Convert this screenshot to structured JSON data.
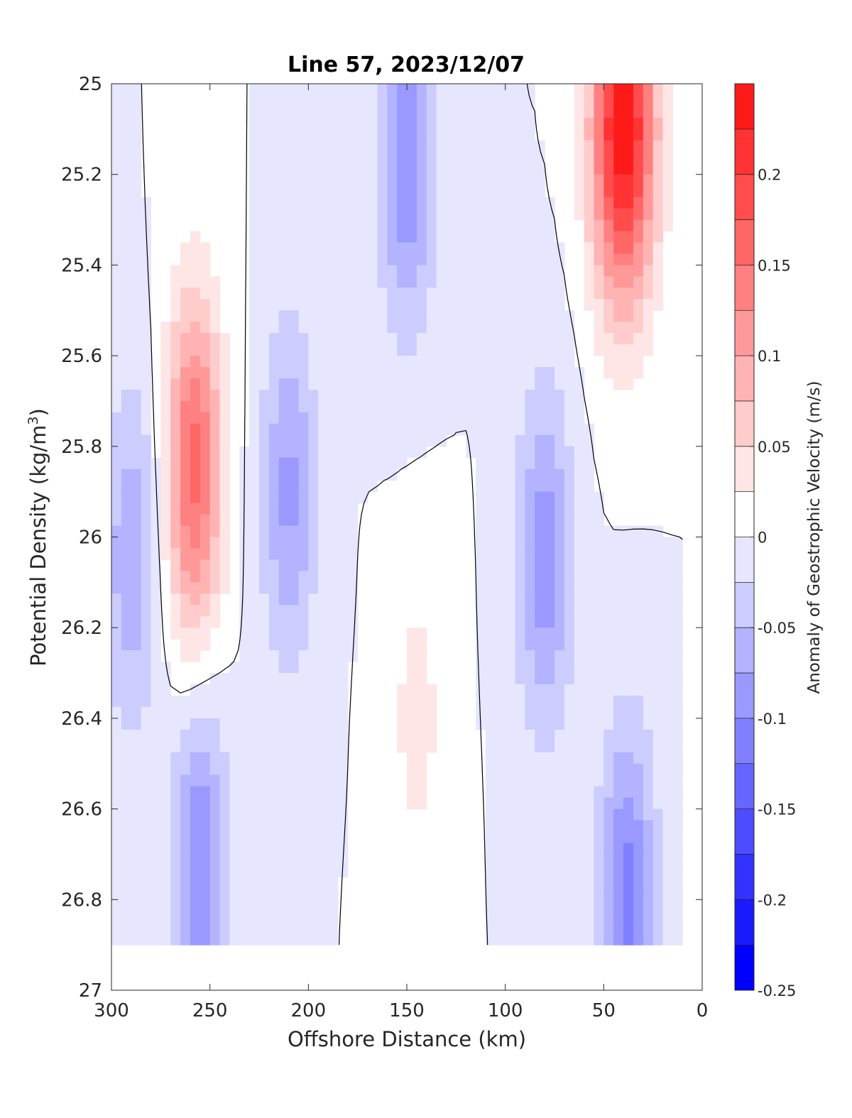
{
  "chart_data": {
    "type": "heatmap",
    "title": "Line 57, 2023/12/07",
    "xlabel": "Offshore Distance (km)",
    "ylabel": "Potential Density (kg/m",
    "ylabel_sup": "3",
    "ylabel_close": ")",
    "xlim": [
      300,
      0
    ],
    "ylim": [
      25,
      27
    ],
    "x_reversed": true,
    "y_reversed": true,
    "xticks": [
      300,
      250,
      200,
      150,
      100,
      50,
      0
    ],
    "yticks": [
      25,
      25.2,
      25.4,
      25.6,
      25.8,
      26,
      26.2,
      26.4,
      26.6,
      26.8,
      27
    ],
    "xtick_labels": [
      "300",
      "250",
      "200",
      "150",
      "100",
      "50",
      "0"
    ],
    "ytick_labels": [
      "25",
      "25.2",
      "25.4",
      "25.6",
      "25.8",
      "26",
      "26.2",
      "26.4",
      "26.6",
      "26.8",
      "27"
    ],
    "colorbar": {
      "label": "Anomaly of Geostrophic Velocity (m/s)",
      "range": [
        -0.25,
        0.25
      ],
      "levels": [
        -0.25,
        -0.225,
        -0.2,
        -0.175,
        -0.15,
        -0.125,
        -0.1,
        -0.075,
        -0.05,
        -0.025,
        0,
        0.025,
        0.05,
        0.075,
        0.1,
        0.125,
        0.15,
        0.175,
        0.2,
        0.225,
        0.25
      ],
      "colors": [
        "#0000ff",
        "#1a1aff",
        "#3333ff",
        "#4d4dff",
        "#6666ff",
        "#8080ff",
        "#9999ff",
        "#b3b3ff",
        "#ccccff",
        "#e6e6ff",
        "#ffffff",
        "#ffe6e6",
        "#ffcccc",
        "#ffb3b3",
        "#ff9999",
        "#ff8080",
        "#ff6666",
        "#ff4d4d",
        "#ff3333",
        "#ff1a1a"
      ],
      "ticks": [
        -0.25,
        -0.2,
        -0.15,
        -0.1,
        -0.05,
        0,
        0.05,
        0.1,
        0.15,
        0.2
      ],
      "tick_labels": [
        "-0.25",
        "-0.2",
        "-0.15",
        "-0.1",
        "-0.05",
        "0",
        "0.05",
        "0.1",
        "0.15",
        "0.2"
      ]
    },
    "zero_contour": "black",
    "data_extent": {
      "x": [
        300,
        10
      ],
      "y_bottom": 26.9
    },
    "features": [
      {
        "x": 258,
        "y": 25.85,
        "peak": 0.16
      },
      {
        "x": 40,
        "y": 25.1,
        "peak": 0.25
      },
      {
        "x": 290,
        "y": 26.05,
        "peak": -0.07
      },
      {
        "x": 255,
        "y": 26.73,
        "peak": -0.1
      },
      {
        "x": 210,
        "y": 25.9,
        "peak": -0.08
      },
      {
        "x": 150,
        "y": 25.15,
        "peak": -0.1
      },
      {
        "x": 80,
        "y": 26.05,
        "peak": -0.09
      },
      {
        "x": 38,
        "y": 26.8,
        "peak": -0.11
      },
      {
        "x": 145,
        "y": 26.4,
        "peak": 0.035
      }
    ]
  }
}
